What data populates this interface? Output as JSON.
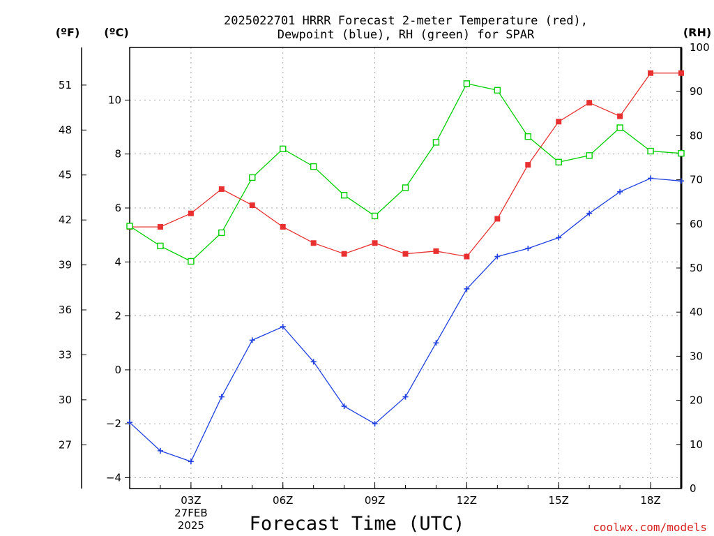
{
  "chart_data": {
    "type": "line",
    "title_line1": "2025022701 HRRR Forecast 2-meter Temperature (red),",
    "title_line2": "Dewpoint (blue), RH (green) for SPAR",
    "xlabel": "Forecast Time (UTC)",
    "credit": "coolwx.com/models",
    "units": {
      "f": "(ºF)",
      "c": "(ºC)",
      "rh": "(RH)"
    },
    "x_hours": [
      1,
      2,
      3,
      4,
      5,
      6,
      7,
      8,
      9,
      10,
      11,
      12,
      13,
      14,
      15,
      16,
      17,
      18,
      19
    ],
    "xlim": [
      1,
      19
    ],
    "x_ticks": [
      {
        "hour": 3,
        "lines": [
          "03Z",
          "27FEB",
          "2025"
        ]
      },
      {
        "hour": 6,
        "lines": [
          "06Z"
        ]
      },
      {
        "hour": 9,
        "lines": [
          "09Z"
        ]
      },
      {
        "hour": 12,
        "lines": [
          "12Z"
        ]
      },
      {
        "hour": 15,
        "lines": [
          "15Z"
        ]
      },
      {
        "hour": 18,
        "lines": [
          "18Z"
        ]
      }
    ],
    "c_axis": {
      "lim": [
        -4.4,
        11.95
      ],
      "ticks": [
        -4,
        -2,
        0,
        2,
        4,
        6,
        8,
        10
      ],
      "tick_labels": [
        "−4",
        "−2",
        "0",
        "2",
        "4",
        "6",
        "8",
        "10"
      ]
    },
    "f_axis": {
      "ticks": [
        27,
        30,
        33,
        36,
        39,
        42,
        45,
        48,
        51
      ]
    },
    "rh_axis": {
      "lim": [
        0,
        100
      ],
      "ticks": [
        0,
        10,
        20,
        30,
        40,
        50,
        60,
        70,
        80,
        90,
        100
      ]
    },
    "grid": true,
    "series": [
      {
        "name": "Temperature",
        "color": "#e83030",
        "marker": "filled-square",
        "axis": "c",
        "values": [
          5.3,
          5.3,
          5.8,
          6.7,
          6.1,
          5.3,
          4.7,
          4.3,
          4.7,
          4.3,
          4.4,
          4.2,
          5.6,
          7.6,
          9.2,
          9.9,
          9.4,
          11.0,
          11.0
        ]
      },
      {
        "name": "Dewpoint",
        "color": "#2040e0",
        "marker": "plus",
        "axis": "c",
        "values": [
          -1.95,
          -3.0,
          -3.4,
          -1.0,
          1.1,
          1.6,
          0.3,
          -1.35,
          -2.0,
          -1.0,
          1.0,
          3.0,
          4.2,
          4.5,
          4.9,
          5.8,
          6.6,
          7.1,
          7.0
        ]
      },
      {
        "name": "RH",
        "color": "#00d000",
        "marker": "open-square",
        "axis": "rh",
        "values": [
          59.5,
          55.0,
          51.5,
          58.0,
          70.5,
          77.0,
          73.0,
          66.5,
          61.8,
          68.2,
          78.5,
          91.8,
          90.3,
          79.8,
          74.0,
          75.5,
          81.8,
          76.5,
          76.0
        ]
      }
    ]
  }
}
